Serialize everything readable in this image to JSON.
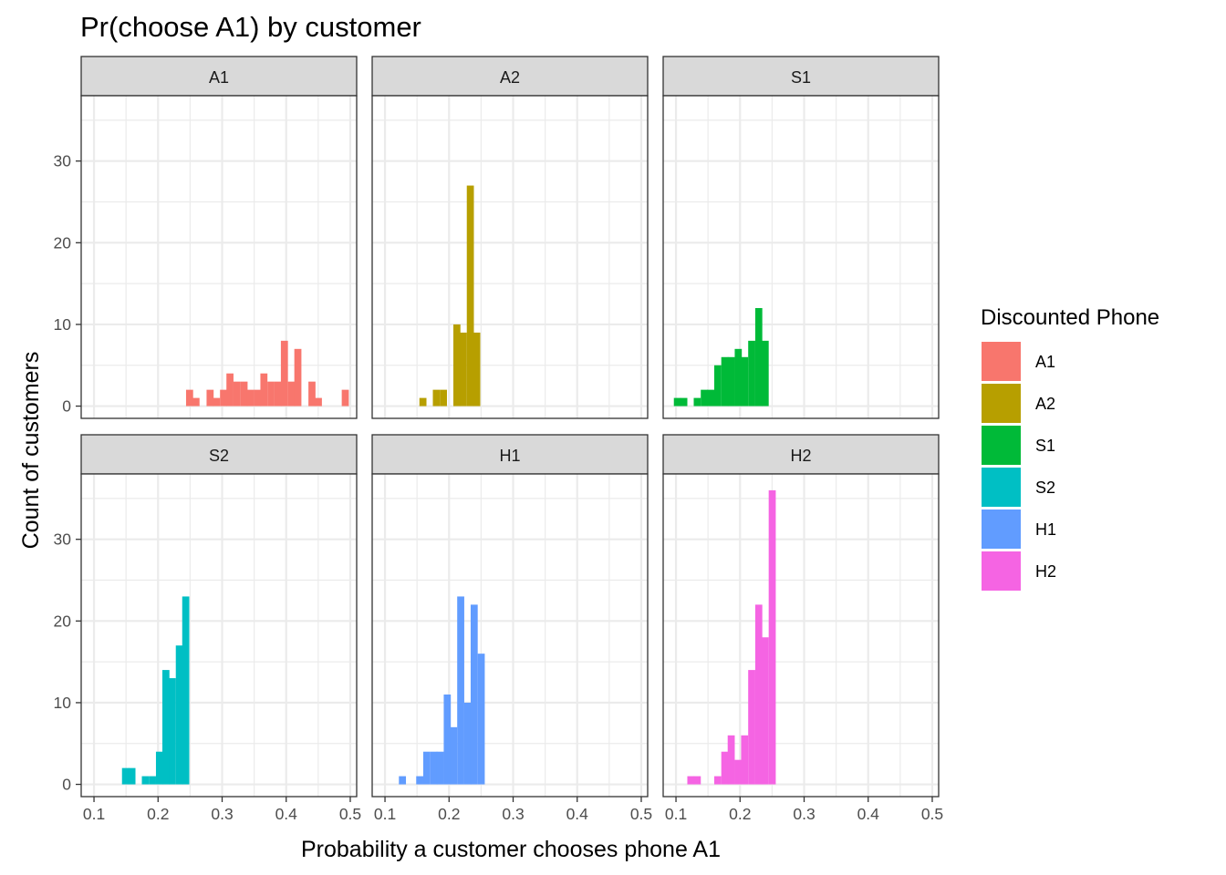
{
  "chart_data": {
    "type": "bar",
    "subtype": "faceted-histogram",
    "title": "Pr(choose A1) by customer",
    "xlabel": "Probability a customer chooses phone A1",
    "ylabel": "Count of customers",
    "xlim": [
      0.08,
      0.51
    ],
    "ylim": [
      -1.5,
      38
    ],
    "x_ticks": [
      0.1,
      0.2,
      0.3,
      0.4,
      0.5
    ],
    "x_tick_labels": [
      "0.1",
      "0.2",
      "0.3",
      "0.4",
      "0.5"
    ],
    "y_ticks": [
      0,
      10,
      20,
      30
    ],
    "y_tick_labels": [
      "0",
      "10",
      "20",
      "30"
    ],
    "bin_width": 0.0106,
    "grid": true,
    "facet_layout": "2 rows x 3 columns",
    "legend": {
      "title": "Discounted Phone",
      "position": "right",
      "entries": [
        {
          "label": "A1",
          "color": "#F8766D"
        },
        {
          "label": "A2",
          "color": "#B79F00"
        },
        {
          "label": "S1",
          "color": "#00BA38"
        },
        {
          "label": "S2",
          "color": "#00BFC4"
        },
        {
          "label": "H1",
          "color": "#619CFF"
        },
        {
          "label": "H2",
          "color": "#F564E3"
        }
      ]
    },
    "facets": [
      {
        "label": "A1",
        "color": "#F8766D",
        "bins": [
          [
            0.249,
            2
          ],
          [
            0.259,
            1
          ],
          [
            0.281,
            2
          ],
          [
            0.291,
            1
          ],
          [
            0.302,
            2
          ],
          [
            0.312,
            4
          ],
          [
            0.323,
            3
          ],
          [
            0.334,
            3
          ],
          [
            0.344,
            2
          ],
          [
            0.355,
            2
          ],
          [
            0.365,
            4
          ],
          [
            0.376,
            3
          ],
          [
            0.387,
            3
          ],
          [
            0.397,
            8
          ],
          [
            0.408,
            3
          ],
          [
            0.418,
            7
          ],
          [
            0.44,
            3
          ],
          [
            0.45,
            1
          ],
          [
            0.492,
            2
          ]
        ]
      },
      {
        "label": "A2",
        "color": "#B79F00",
        "bins": [
          [
            0.159,
            1
          ],
          [
            0.18,
            2
          ],
          [
            0.191,
            2
          ],
          [
            0.212,
            10
          ],
          [
            0.222,
            9
          ],
          [
            0.233,
            27
          ],
          [
            0.243,
            9
          ]
        ]
      },
      {
        "label": "S1",
        "color": "#00BA38",
        "bins": [
          [
            0.102,
            1
          ],
          [
            0.112,
            1
          ],
          [
            0.133,
            1
          ],
          [
            0.144,
            2
          ],
          [
            0.154,
            2
          ],
          [
            0.165,
            5
          ],
          [
            0.176,
            6
          ],
          [
            0.186,
            6
          ],
          [
            0.197,
            7
          ],
          [
            0.207,
            6
          ],
          [
            0.218,
            8
          ],
          [
            0.229,
            12
          ],
          [
            0.239,
            8
          ]
        ]
      },
      {
        "label": "S2",
        "color": "#00BFC4",
        "bins": [
          [
            0.149,
            2
          ],
          [
            0.159,
            2
          ],
          [
            0.18,
            1
          ],
          [
            0.191,
            1
          ],
          [
            0.202,
            4
          ],
          [
            0.212,
            14
          ],
          [
            0.222,
            13
          ],
          [
            0.233,
            17
          ],
          [
            0.243,
            23
          ]
        ]
      },
      {
        "label": "H1",
        "color": "#619CFF",
        "bins": [
          [
            0.127,
            1
          ],
          [
            0.154,
            1
          ],
          [
            0.165,
            4
          ],
          [
            0.176,
            4
          ],
          [
            0.186,
            4
          ],
          [
            0.197,
            11
          ],
          [
            0.207,
            7
          ],
          [
            0.218,
            23
          ],
          [
            0.229,
            10
          ],
          [
            0.239,
            22
          ],
          [
            0.25,
            16
          ]
        ]
      },
      {
        "label": "H2",
        "color": "#F564E3",
        "bins": [
          [
            0.123,
            1
          ],
          [
            0.133,
            1
          ],
          [
            0.165,
            1
          ],
          [
            0.176,
            4
          ],
          [
            0.186,
            6
          ],
          [
            0.197,
            3
          ],
          [
            0.207,
            6
          ],
          [
            0.218,
            14
          ],
          [
            0.229,
            22
          ],
          [
            0.239,
            18
          ],
          [
            0.25,
            36
          ]
        ]
      }
    ]
  }
}
